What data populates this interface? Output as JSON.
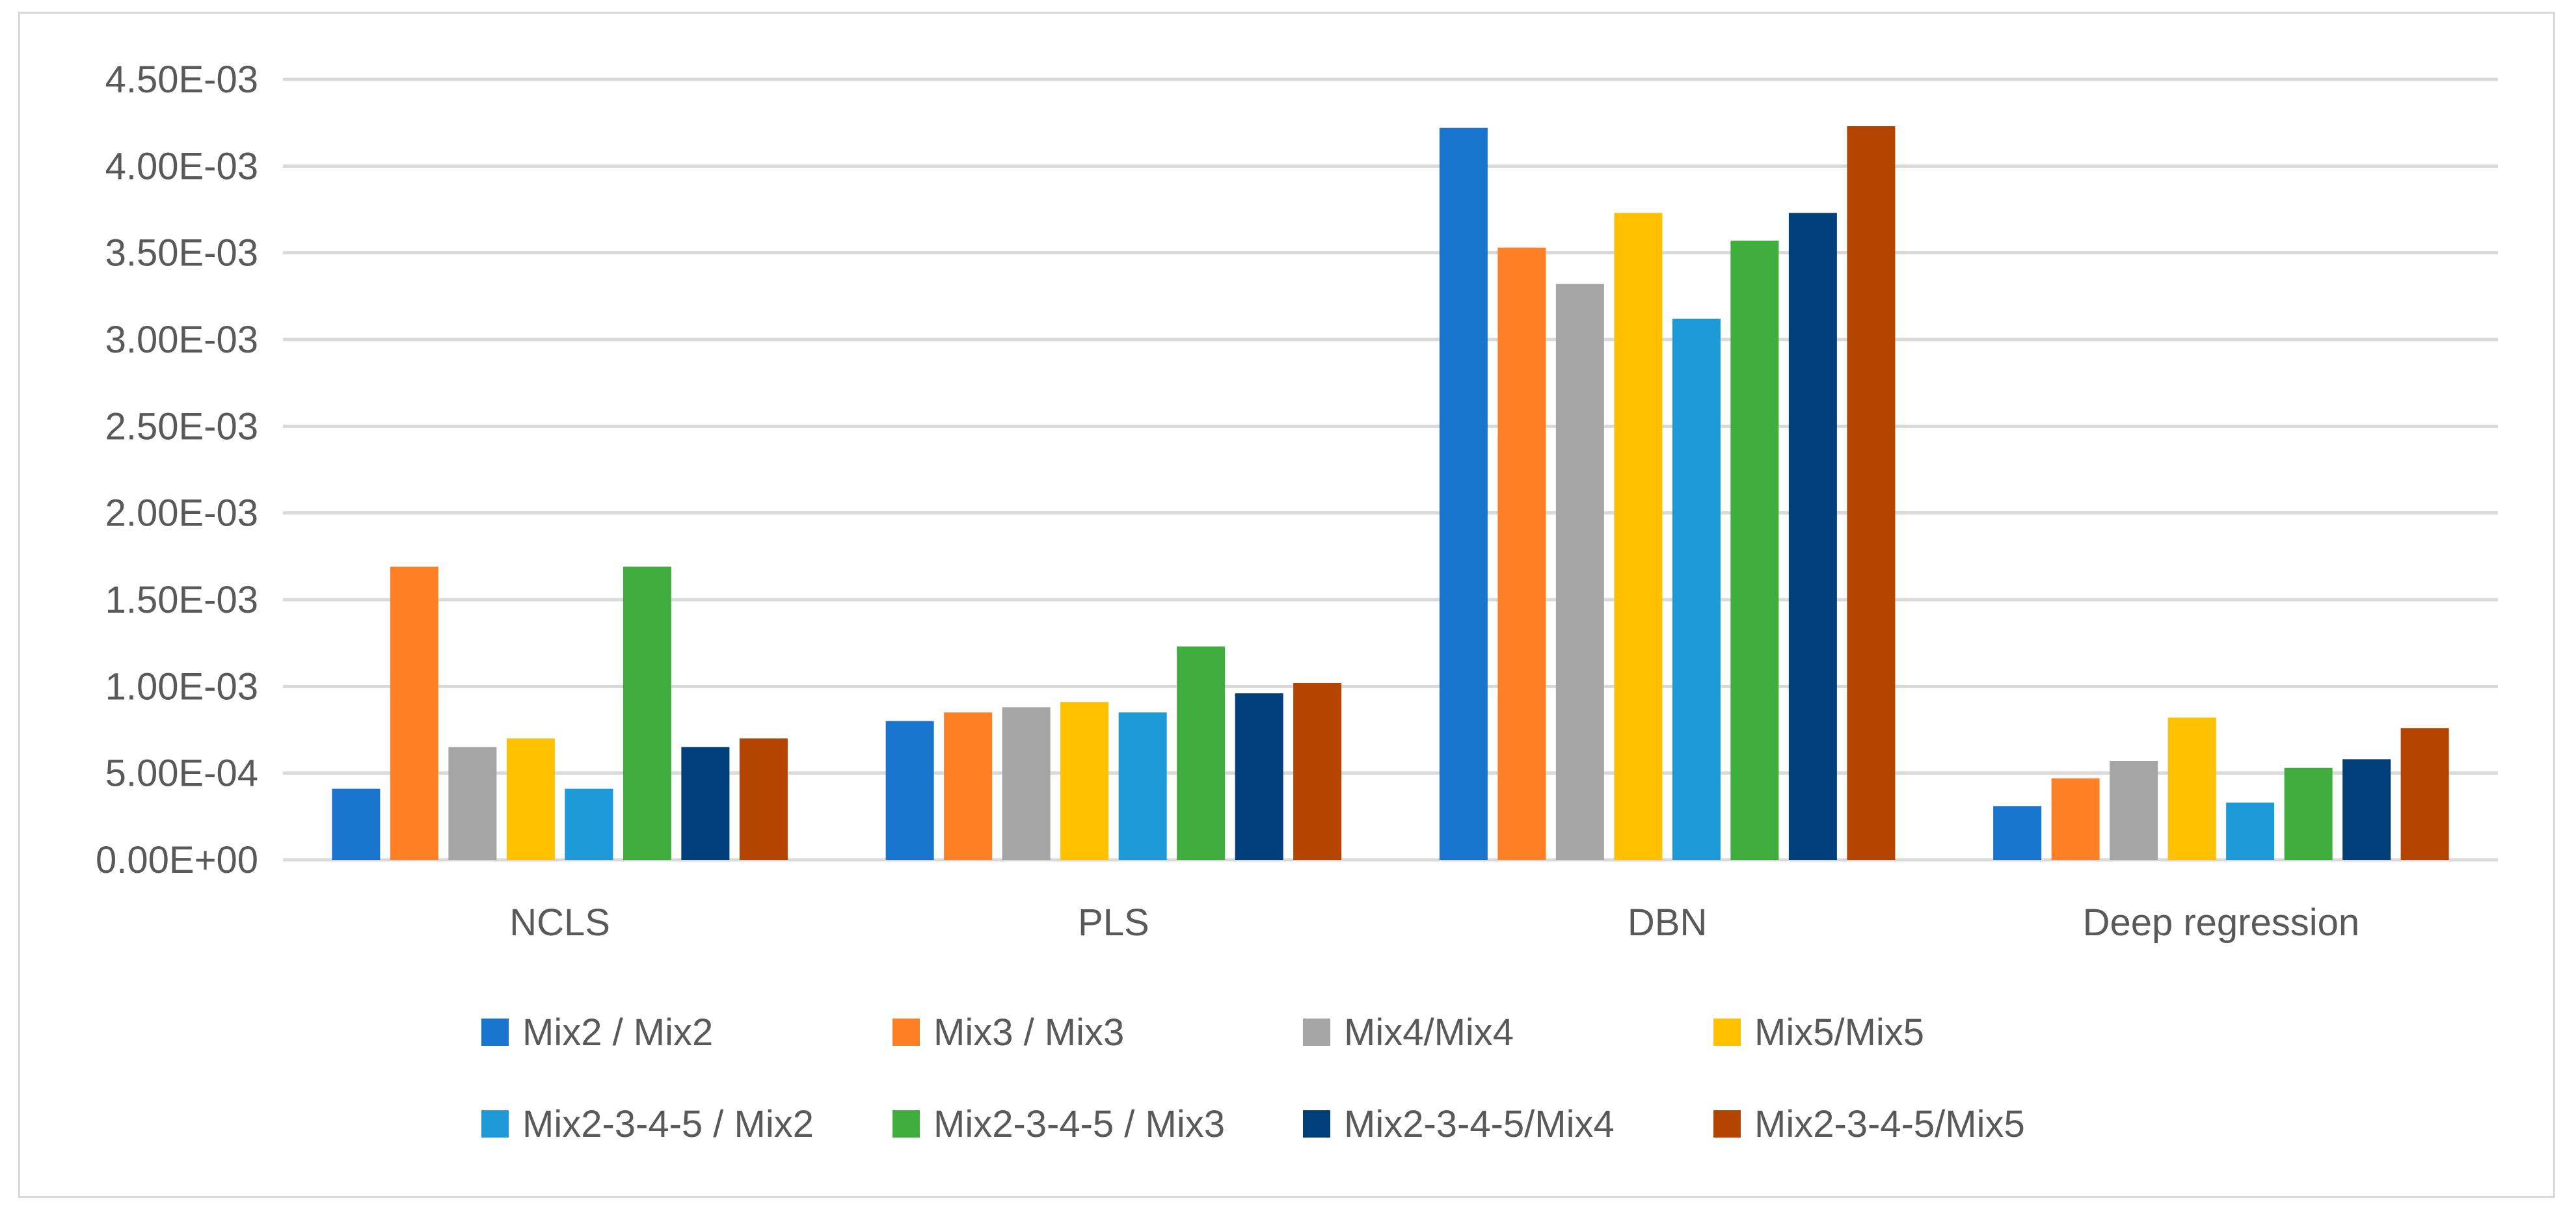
{
  "chart_data": {
    "type": "bar",
    "title": "",
    "xlabel": "",
    "ylabel": "",
    "ylim": [
      0,
      0.0045
    ],
    "y_ticks": [
      {
        "value": 0,
        "label": "0.00E+00"
      },
      {
        "value": 0.0005,
        "label": "5.00E-04"
      },
      {
        "value": 0.001,
        "label": "1.00E-03"
      },
      {
        "value": 0.0015,
        "label": "1.50E-03"
      },
      {
        "value": 0.002,
        "label": "2.00E-03"
      },
      {
        "value": 0.0025,
        "label": "2.50E-03"
      },
      {
        "value": 0.003,
        "label": "3.00E-03"
      },
      {
        "value": 0.0035,
        "label": "3.50E-03"
      },
      {
        "value": 0.004,
        "label": "4.00E-03"
      },
      {
        "value": 0.0045,
        "label": "4.50E-03"
      }
    ],
    "grid": true,
    "legend_position": "bottom",
    "categories": [
      "NCLS",
      "PLS",
      "DBN",
      "Deep regression"
    ],
    "series": [
      {
        "name": "Mix2 / Mix2",
        "color": "#1874cd",
        "values": [
          0.00041,
          0.0008,
          0.00422,
          0.00031
        ]
      },
      {
        "name": "Mix3 / Mix3",
        "color": "#ff7f27",
        "values": [
          0.00169,
          0.00085,
          0.00353,
          0.00047
        ]
      },
      {
        "name": "Mix4/Mix4",
        "color": "#a5a5a5",
        "values": [
          0.00065,
          0.00088,
          0.00332,
          0.00057
        ]
      },
      {
        "name": "Mix5/Mix5",
        "color": "#ffc000",
        "values": [
          0.0007,
          0.00091,
          0.00373,
          0.00082
        ]
      },
      {
        "name": "Mix2-3-4-5 / Mix2",
        "color": "#1f9ad9",
        "values": [
          0.00041,
          0.00085,
          0.00312,
          0.00033
        ]
      },
      {
        "name": "Mix2-3-4-5 / Mix3",
        "color": "#3fae3f",
        "values": [
          0.00169,
          0.00123,
          0.00357,
          0.00053
        ]
      },
      {
        "name": "Mix2-3-4-5/Mix4",
        "color": "#003f7a",
        "values": [
          0.00065,
          0.00096,
          0.00373,
          0.00058
        ]
      },
      {
        "name": "Mix2-3-4-5/Mix5",
        "color": "#b34500",
        "values": [
          0.0007,
          0.00102,
          0.00423,
          0.00076
        ]
      }
    ]
  }
}
